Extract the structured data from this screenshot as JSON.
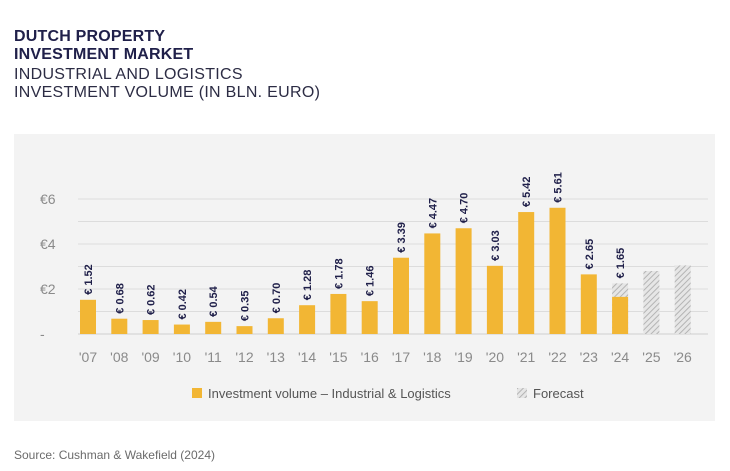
{
  "header": {
    "title_line1": "DUTCH PROPERTY",
    "title_line2": "INVESTMENT MARKET",
    "subtitle_line1": "INDUSTRIAL AND LOGISTICS",
    "subtitle_line2": "INVESTMENT VOLUME (IN BLN. EURO)"
  },
  "source": "Source: Cushman & Wakefield (2024)",
  "colors": {
    "bar": "#f2b634",
    "forecast": "#c8c8c8",
    "panel": "#f3f3f3",
    "title": "#20204a"
  },
  "chart_data": {
    "type": "bar",
    "categories": [
      "'07",
      "'08",
      "'09",
      "'10",
      "'11",
      "'12",
      "'13",
      "'14",
      "'15",
      "'16",
      "'17",
      "'18",
      "'19",
      "'20",
      "'21",
      "'22",
      "'23",
      "'24",
      "'25",
      "'26"
    ],
    "y_ticks": [
      "€6",
      "€4",
      "€2",
      "-"
    ],
    "y_tick_values": [
      6,
      4,
      2,
      0
    ],
    "ylim": [
      0,
      6.6
    ],
    "grid": true,
    "legend_position": "bottom",
    "series": [
      {
        "name": "Investment volume – Industrial & Logistics",
        "values": [
          1.52,
          0.68,
          0.62,
          0.42,
          0.54,
          0.35,
          0.7,
          1.28,
          1.78,
          1.46,
          3.39,
          4.47,
          4.7,
          3.03,
          5.42,
          5.61,
          2.65,
          1.65,
          null,
          null
        ],
        "labels": [
          "€ 1.52",
          "€ 0.68",
          "€ 0.62",
          "€ 0.42",
          "€ 0.54",
          "€ 0.35",
          "€ 0.70",
          "€ 1.28",
          "€ 1.78",
          "€ 1.46",
          "€ 3.39",
          "€ 4.47",
          "€ 4.70",
          "€ 3.03",
          "€ 5.42",
          "€ 5.61",
          "€ 2.65",
          "€ 1.65",
          "",
          ""
        ]
      },
      {
        "name": "Forecast",
        "values": [
          null,
          null,
          null,
          null,
          null,
          null,
          null,
          null,
          null,
          null,
          null,
          null,
          null,
          null,
          null,
          null,
          null,
          2.25,
          2.8,
          3.05
        ]
      }
    ]
  }
}
